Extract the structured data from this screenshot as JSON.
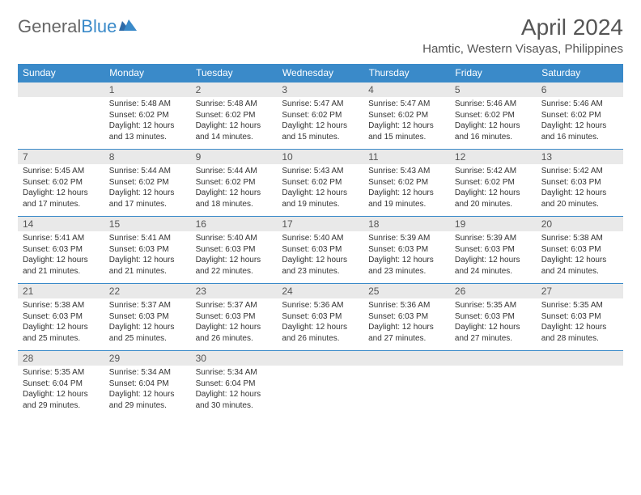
{
  "logo": {
    "part1": "General",
    "part2": "Blue"
  },
  "monthTitle": "April 2024",
  "location": "Hamtic, Western Visayas, Philippines",
  "colors": {
    "headerBg": "#3a8ac9",
    "headerText": "#ffffff",
    "dayNumBg": "#e9e9e9",
    "border": "#3a8ac9",
    "text": "#333333",
    "titleText": "#555555"
  },
  "dayHeaders": [
    "Sunday",
    "Monday",
    "Tuesday",
    "Wednesday",
    "Thursday",
    "Friday",
    "Saturday"
  ],
  "weeks": [
    [
      {
        "num": "",
        "lines": []
      },
      {
        "num": "1",
        "lines": [
          "Sunrise: 5:48 AM",
          "Sunset: 6:02 PM",
          "Daylight: 12 hours",
          "and 13 minutes."
        ]
      },
      {
        "num": "2",
        "lines": [
          "Sunrise: 5:48 AM",
          "Sunset: 6:02 PM",
          "Daylight: 12 hours",
          "and 14 minutes."
        ]
      },
      {
        "num": "3",
        "lines": [
          "Sunrise: 5:47 AM",
          "Sunset: 6:02 PM",
          "Daylight: 12 hours",
          "and 15 minutes."
        ]
      },
      {
        "num": "4",
        "lines": [
          "Sunrise: 5:47 AM",
          "Sunset: 6:02 PM",
          "Daylight: 12 hours",
          "and 15 minutes."
        ]
      },
      {
        "num": "5",
        "lines": [
          "Sunrise: 5:46 AM",
          "Sunset: 6:02 PM",
          "Daylight: 12 hours",
          "and 16 minutes."
        ]
      },
      {
        "num": "6",
        "lines": [
          "Sunrise: 5:46 AM",
          "Sunset: 6:02 PM",
          "Daylight: 12 hours",
          "and 16 minutes."
        ]
      }
    ],
    [
      {
        "num": "7",
        "lines": [
          "Sunrise: 5:45 AM",
          "Sunset: 6:02 PM",
          "Daylight: 12 hours",
          "and 17 minutes."
        ]
      },
      {
        "num": "8",
        "lines": [
          "Sunrise: 5:44 AM",
          "Sunset: 6:02 PM",
          "Daylight: 12 hours",
          "and 17 minutes."
        ]
      },
      {
        "num": "9",
        "lines": [
          "Sunrise: 5:44 AM",
          "Sunset: 6:02 PM",
          "Daylight: 12 hours",
          "and 18 minutes."
        ]
      },
      {
        "num": "10",
        "lines": [
          "Sunrise: 5:43 AM",
          "Sunset: 6:02 PM",
          "Daylight: 12 hours",
          "and 19 minutes."
        ]
      },
      {
        "num": "11",
        "lines": [
          "Sunrise: 5:43 AM",
          "Sunset: 6:02 PM",
          "Daylight: 12 hours",
          "and 19 minutes."
        ]
      },
      {
        "num": "12",
        "lines": [
          "Sunrise: 5:42 AM",
          "Sunset: 6:02 PM",
          "Daylight: 12 hours",
          "and 20 minutes."
        ]
      },
      {
        "num": "13",
        "lines": [
          "Sunrise: 5:42 AM",
          "Sunset: 6:03 PM",
          "Daylight: 12 hours",
          "and 20 minutes."
        ]
      }
    ],
    [
      {
        "num": "14",
        "lines": [
          "Sunrise: 5:41 AM",
          "Sunset: 6:03 PM",
          "Daylight: 12 hours",
          "and 21 minutes."
        ]
      },
      {
        "num": "15",
        "lines": [
          "Sunrise: 5:41 AM",
          "Sunset: 6:03 PM",
          "Daylight: 12 hours",
          "and 21 minutes."
        ]
      },
      {
        "num": "16",
        "lines": [
          "Sunrise: 5:40 AM",
          "Sunset: 6:03 PM",
          "Daylight: 12 hours",
          "and 22 minutes."
        ]
      },
      {
        "num": "17",
        "lines": [
          "Sunrise: 5:40 AM",
          "Sunset: 6:03 PM",
          "Daylight: 12 hours",
          "and 23 minutes."
        ]
      },
      {
        "num": "18",
        "lines": [
          "Sunrise: 5:39 AM",
          "Sunset: 6:03 PM",
          "Daylight: 12 hours",
          "and 23 minutes."
        ]
      },
      {
        "num": "19",
        "lines": [
          "Sunrise: 5:39 AM",
          "Sunset: 6:03 PM",
          "Daylight: 12 hours",
          "and 24 minutes."
        ]
      },
      {
        "num": "20",
        "lines": [
          "Sunrise: 5:38 AM",
          "Sunset: 6:03 PM",
          "Daylight: 12 hours",
          "and 24 minutes."
        ]
      }
    ],
    [
      {
        "num": "21",
        "lines": [
          "Sunrise: 5:38 AM",
          "Sunset: 6:03 PM",
          "Daylight: 12 hours",
          "and 25 minutes."
        ]
      },
      {
        "num": "22",
        "lines": [
          "Sunrise: 5:37 AM",
          "Sunset: 6:03 PM",
          "Daylight: 12 hours",
          "and 25 minutes."
        ]
      },
      {
        "num": "23",
        "lines": [
          "Sunrise: 5:37 AM",
          "Sunset: 6:03 PM",
          "Daylight: 12 hours",
          "and 26 minutes."
        ]
      },
      {
        "num": "24",
        "lines": [
          "Sunrise: 5:36 AM",
          "Sunset: 6:03 PM",
          "Daylight: 12 hours",
          "and 26 minutes."
        ]
      },
      {
        "num": "25",
        "lines": [
          "Sunrise: 5:36 AM",
          "Sunset: 6:03 PM",
          "Daylight: 12 hours",
          "and 27 minutes."
        ]
      },
      {
        "num": "26",
        "lines": [
          "Sunrise: 5:35 AM",
          "Sunset: 6:03 PM",
          "Daylight: 12 hours",
          "and 27 minutes."
        ]
      },
      {
        "num": "27",
        "lines": [
          "Sunrise: 5:35 AM",
          "Sunset: 6:03 PM",
          "Daylight: 12 hours",
          "and 28 minutes."
        ]
      }
    ],
    [
      {
        "num": "28",
        "lines": [
          "Sunrise: 5:35 AM",
          "Sunset: 6:04 PM",
          "Daylight: 12 hours",
          "and 29 minutes."
        ]
      },
      {
        "num": "29",
        "lines": [
          "Sunrise: 5:34 AM",
          "Sunset: 6:04 PM",
          "Daylight: 12 hours",
          "and 29 minutes."
        ]
      },
      {
        "num": "30",
        "lines": [
          "Sunrise: 5:34 AM",
          "Sunset: 6:04 PM",
          "Daylight: 12 hours",
          "and 30 minutes."
        ]
      },
      {
        "num": "",
        "lines": []
      },
      {
        "num": "",
        "lines": []
      },
      {
        "num": "",
        "lines": []
      },
      {
        "num": "",
        "lines": []
      }
    ]
  ]
}
